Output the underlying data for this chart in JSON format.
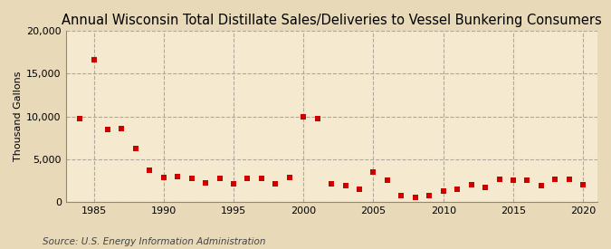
{
  "title": "Annual Wisconsin Total Distillate Sales/Deliveries to Vessel Bunkering Consumers",
  "ylabel": "Thousand Gallons",
  "source": "Source: U.S. Energy Information Administration",
  "background_color": "#e8d9b8",
  "plot_background_color": "#f5ead0",
  "marker_color": "#cc0000",
  "years": [
    1984,
    1985,
    1986,
    1987,
    1988,
    1989,
    1990,
    1991,
    1992,
    1993,
    1994,
    1995,
    1996,
    1997,
    1998,
    1999,
    2000,
    2001,
    2002,
    2003,
    2004,
    2005,
    2006,
    2007,
    2008,
    2009,
    2010,
    2011,
    2012,
    2013,
    2014,
    2015,
    2016,
    2017,
    2018,
    2019,
    2020
  ],
  "values": [
    9700,
    16600,
    8500,
    8600,
    6200,
    3700,
    2900,
    3000,
    2800,
    2200,
    2800,
    2100,
    2800,
    2800,
    2100,
    2900,
    10000,
    9700,
    2100,
    1900,
    1500,
    3500,
    2600,
    800,
    500,
    800,
    1300,
    1500,
    2000,
    1700,
    2700,
    2600,
    2600,
    1900,
    2700,
    2700,
    2000
  ],
  "ylim": [
    0,
    20000
  ],
  "xlim": [
    1983,
    2021
  ],
  "yticks": [
    0,
    5000,
    10000,
    15000,
    20000
  ],
  "xticks": [
    1985,
    1990,
    1995,
    2000,
    2005,
    2010,
    2015,
    2020
  ],
  "grid_color": "#b0a898",
  "title_fontsize": 10.5,
  "ylabel_fontsize": 8,
  "tick_fontsize": 8,
  "source_fontsize": 7.5,
  "marker_size": 18
}
